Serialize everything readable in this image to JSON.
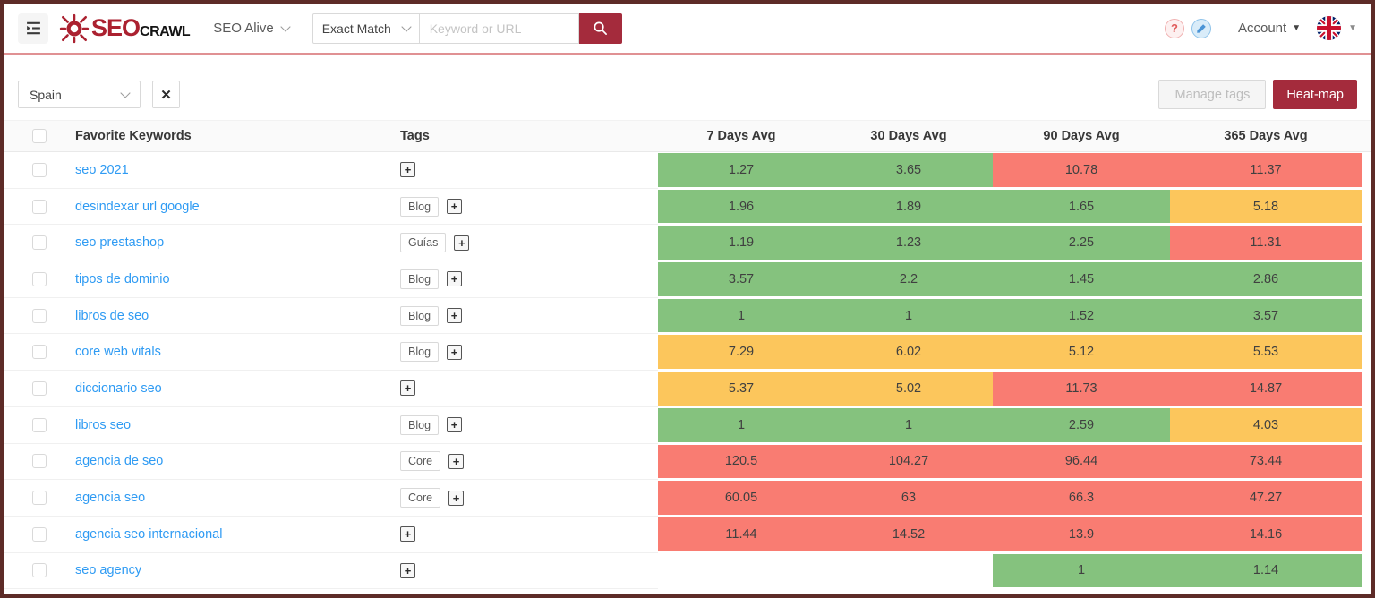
{
  "brand": {
    "name_primary": "SEO",
    "name_secondary": "CRAWL"
  },
  "header": {
    "project": "SEO Alive",
    "match_select": "Exact Match",
    "search_placeholder": "Keyword or URL",
    "account": "Account"
  },
  "icons": {
    "question": "?",
    "close": "✕",
    "caret": "▼",
    "plus": "+"
  },
  "toolbar": {
    "country": "Spain",
    "manage_tags": "Manage tags",
    "heatmap": "Heat-map"
  },
  "table": {
    "columns": [
      "Favorite Keywords",
      "Tags",
      "7 Days Avg",
      "30 Days Avg",
      "90 Days Avg",
      "365 Days Avg"
    ],
    "rows": [
      {
        "keyword": "seo 2021",
        "tags": [],
        "values": [
          {
            "v": "1.27",
            "level": "green"
          },
          {
            "v": "3.65",
            "level": "green"
          },
          {
            "v": "10.78",
            "level": "red"
          },
          {
            "v": "11.37",
            "level": "red"
          }
        ]
      },
      {
        "keyword": "desindexar url google",
        "tags": [
          "Blog"
        ],
        "values": [
          {
            "v": "1.96",
            "level": "green"
          },
          {
            "v": "1.89",
            "level": "green"
          },
          {
            "v": "1.65",
            "level": "green"
          },
          {
            "v": "5.18",
            "level": "yellow"
          }
        ]
      },
      {
        "keyword": "seo prestashop",
        "tags": [
          "Guías"
        ],
        "values": [
          {
            "v": "1.19",
            "level": "green"
          },
          {
            "v": "1.23",
            "level": "green"
          },
          {
            "v": "2.25",
            "level": "green"
          },
          {
            "v": "11.31",
            "level": "red"
          }
        ]
      },
      {
        "keyword": "tipos de dominio",
        "tags": [
          "Blog"
        ],
        "values": [
          {
            "v": "3.57",
            "level": "green"
          },
          {
            "v": "2.2",
            "level": "green"
          },
          {
            "v": "1.45",
            "level": "green"
          },
          {
            "v": "2.86",
            "level": "green"
          }
        ]
      },
      {
        "keyword": "libros de seo",
        "tags": [
          "Blog"
        ],
        "values": [
          {
            "v": "1",
            "level": "green"
          },
          {
            "v": "1",
            "level": "green"
          },
          {
            "v": "1.52",
            "level": "green"
          },
          {
            "v": "3.57",
            "level": "green"
          }
        ]
      },
      {
        "keyword": "core web vitals",
        "tags": [
          "Blog"
        ],
        "values": [
          {
            "v": "7.29",
            "level": "yellow"
          },
          {
            "v": "6.02",
            "level": "yellow"
          },
          {
            "v": "5.12",
            "level": "yellow"
          },
          {
            "v": "5.53",
            "level": "yellow"
          }
        ]
      },
      {
        "keyword": "diccionario seo",
        "tags": [],
        "values": [
          {
            "v": "5.37",
            "level": "yellow"
          },
          {
            "v": "5.02",
            "level": "yellow"
          },
          {
            "v": "11.73",
            "level": "red"
          },
          {
            "v": "14.87",
            "level": "red"
          }
        ]
      },
      {
        "keyword": "libros seo",
        "tags": [
          "Blog"
        ],
        "values": [
          {
            "v": "1",
            "level": "green"
          },
          {
            "v": "1",
            "level": "green"
          },
          {
            "v": "2.59",
            "level": "green"
          },
          {
            "v": "4.03",
            "level": "yellow"
          }
        ]
      },
      {
        "keyword": "agencia de seo",
        "tags": [
          "Core"
        ],
        "values": [
          {
            "v": "120.5",
            "level": "red"
          },
          {
            "v": "104.27",
            "level": "red"
          },
          {
            "v": "96.44",
            "level": "red"
          },
          {
            "v": "73.44",
            "level": "red"
          }
        ]
      },
      {
        "keyword": "agencia seo",
        "tags": [
          "Core"
        ],
        "values": [
          {
            "v": "60.05",
            "level": "red"
          },
          {
            "v": "63",
            "level": "red"
          },
          {
            "v": "66.3",
            "level": "red"
          },
          {
            "v": "47.27",
            "level": "red"
          }
        ]
      },
      {
        "keyword": "agencia seo internacional",
        "tags": [],
        "values": [
          {
            "v": "11.44",
            "level": "red"
          },
          {
            "v": "14.52",
            "level": "red"
          },
          {
            "v": "13.9",
            "level": "red"
          },
          {
            "v": "14.16",
            "level": "red"
          }
        ]
      },
      {
        "keyword": "seo agency",
        "tags": [],
        "values": [
          {
            "v": "",
            "level": "empty"
          },
          {
            "v": "",
            "level": "empty"
          },
          {
            "v": "1",
            "level": "green"
          },
          {
            "v": "1.14",
            "level": "green"
          }
        ]
      }
    ]
  },
  "colors": {
    "green": "#85c27e",
    "yellow": "#fcc65c",
    "red": "#f97c72",
    "brand": "#a42b3c",
    "link": "#2f9bf3"
  }
}
